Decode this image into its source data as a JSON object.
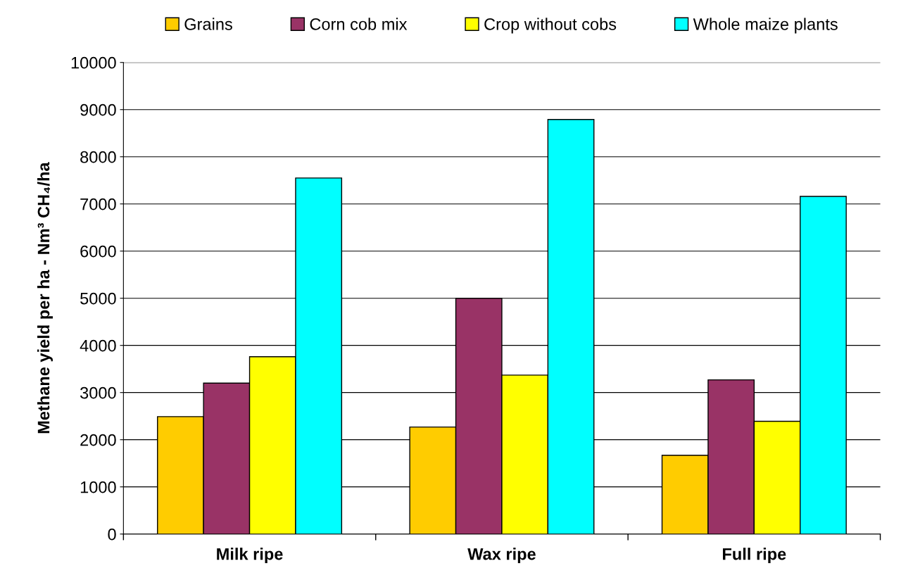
{
  "chart_data": {
    "type": "bar",
    "ylabel": "Methane yield per ha - Nm³ CH₄/ha",
    "categories": [
      "Milk ripe",
      "Wax ripe",
      "Full ripe"
    ],
    "series": [
      {
        "name": "Grains",
        "color": "#ffcc00",
        "values": [
          2490,
          2270,
          1670
        ]
      },
      {
        "name": "Corn cob mix",
        "color": "#993366",
        "values": [
          3200,
          5000,
          3270
        ]
      },
      {
        "name": "Crop without cobs",
        "color": "#ffff00",
        "values": [
          3760,
          3370,
          2390
        ]
      },
      {
        "name": "Whole maize plants",
        "color": "#00ffff",
        "values": [
          7550,
          8790,
          7160
        ]
      }
    ],
    "ylim": [
      0,
      10000
    ],
    "yticks": [
      0,
      1000,
      2000,
      3000,
      4000,
      5000,
      6000,
      7000,
      8000,
      9000,
      10000
    ],
    "grid": "y",
    "legend": "top"
  }
}
